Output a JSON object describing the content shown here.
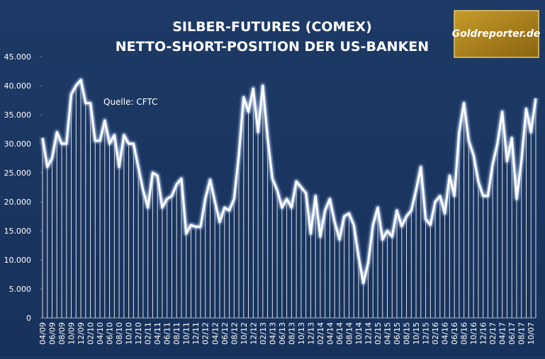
{
  "chart_data": {
    "type": "line",
    "title": "SILBER-FUTURES (COMEX)",
    "subtitle": "NETTO-SHORT-POSITION DER US-BANKEN",
    "annotation": "Quelle: CFTC",
    "logo": "Goldreporter.de",
    "categories": [
      "04/09",
      null,
      "06/09",
      null,
      "08/09",
      null,
      "10/09",
      null,
      "12/09",
      null,
      "02/10",
      null,
      "04/10",
      null,
      "06/10",
      null,
      "08/10",
      null,
      "10/10",
      null,
      "12/10",
      null,
      "02/11",
      null,
      "04/11",
      null,
      "06/11",
      null,
      "08/11",
      null,
      "10/11",
      null,
      "12/11",
      null,
      "02/12",
      null,
      "04/12",
      null,
      "06/12",
      null,
      "08/12",
      null,
      "10/12",
      null,
      "12/12",
      null,
      "02/13",
      null,
      "04/13",
      null,
      "06/13",
      null,
      "08/13",
      null,
      "10/13",
      null,
      "12/13",
      null,
      "02/14",
      null,
      "04/14",
      null,
      "06/14",
      null,
      "08/14",
      null,
      "10/14",
      null,
      "12/14",
      null,
      "02/15",
      null,
      "04/15",
      null,
      "06/15",
      null,
      "08/15",
      null,
      "10/15",
      null,
      "12/15",
      null,
      "02/16",
      null,
      "04/16",
      null,
      "06/16",
      null,
      "08/16",
      null,
      "10/16",
      null,
      "12/16",
      null,
      "02/17",
      null,
      "04/17",
      null,
      "06/17",
      null,
      "08/17",
      null,
      "10/07",
      null
    ],
    "values": [
      31000,
      26000,
      27500,
      32000,
      30000,
      30000,
      38500,
      40000,
      41000,
      37000,
      37000,
      30500,
      30500,
      34000,
      30000,
      31500,
      26000,
      31500,
      30000,
      30000,
      26000,
      22000,
      19000,
      25000,
      24500,
      19000,
      20500,
      21000,
      23000,
      24000,
      14500,
      16000,
      15700,
      15700,
      20500,
      23800,
      20000,
      16500,
      19000,
      18500,
      20500,
      28000,
      38000,
      35500,
      39500,
      32000,
      40000,
      31000,
      24000,
      22000,
      19000,
      20500,
      19000,
      23500,
      22500,
      21500,
      14500,
      21000,
      14000,
      18500,
      20500,
      16500,
      13500,
      17500,
      18000,
      16000,
      10500,
      6000,
      9500,
      16000,
      19000,
      13500,
      15000,
      14000,
      18500,
      15800,
      17500,
      18500,
      22000,
      26000,
      17000,
      16000,
      20000,
      21000,
      18000,
      24500,
      21000,
      32000,
      37000,
      30500,
      28000,
      23500,
      21000,
      21000,
      26500,
      30000,
      35500,
      27000,
      31000,
      20500,
      27000,
      36000,
      32000,
      37800
    ],
    "color": "#ffffff",
    "ylim": [
      0,
      45000
    ],
    "yticks": [
      {
        "value": 0,
        "label": "0"
      },
      {
        "value": 5000,
        "label": "5.000"
      },
      {
        "value": 10000,
        "label": "10.000"
      },
      {
        "value": 15000,
        "label": "15.000"
      },
      {
        "value": 20000,
        "label": "20.000"
      },
      {
        "value": 25000,
        "label": "25.000"
      },
      {
        "value": 30000,
        "label": "30.000"
      },
      {
        "value": 35000,
        "label": "35.000"
      },
      {
        "value": 40000,
        "label": "40.000"
      },
      {
        "value": 45000,
        "label": "45.000"
      }
    ],
    "drop_lines": true
  }
}
